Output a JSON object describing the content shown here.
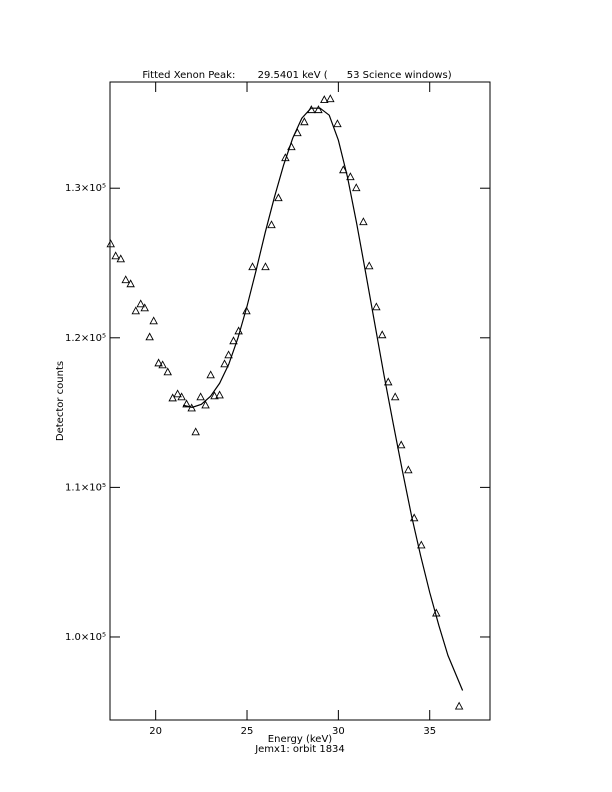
{
  "chart_data": {
    "type": "scatter",
    "title": "Fitted Xenon Peak:       29.5401 keV (      53 Science windows)",
    "xlabel": "Energy (keV)",
    "ylabel": "Detector counts",
    "footer": "Jemx1: orbit 1834",
    "xlim": [
      17.5,
      38.3
    ],
    "ylim": [
      94450,
      137100
    ],
    "xticks": [
      20,
      25,
      30,
      35
    ],
    "yticks": [
      {
        "value": 100000,
        "label": "1.0×10⁵"
      },
      {
        "value": 110000,
        "label": "1.1×10⁵"
      },
      {
        "value": 120000,
        "label": "1.2×10⁵"
      },
      {
        "value": 130000,
        "label": "1.3×10⁵"
      }
    ],
    "series": [
      {
        "name": "Data",
        "color": "#000000",
        "marker": "triangle",
        "x": [
          17.54,
          17.81,
          18.09,
          18.36,
          18.63,
          18.91,
          19.18,
          19.4,
          19.67,
          19.89,
          20.16,
          20.38,
          20.66,
          20.93,
          21.2,
          21.42,
          21.69,
          21.97,
          22.19,
          22.46,
          22.73,
          23.01,
          23.22,
          23.5,
          23.77,
          23.99,
          24.26,
          24.54,
          24.97,
          25.3,
          26.01,
          26.34,
          26.72,
          27.1,
          27.43,
          27.76,
          28.14,
          28.52,
          28.91,
          29.23,
          29.56,
          29.95,
          30.27,
          30.66,
          30.98,
          31.37,
          31.69,
          32.08,
          32.4,
          32.73,
          33.11,
          33.44,
          33.83,
          34.15,
          34.54,
          35.36,
          36.61
        ],
        "values": [
          126250,
          125450,
          125250,
          123850,
          123580,
          121770,
          122240,
          121970,
          120030,
          121100,
          118290,
          118160,
          117690,
          115950,
          116220,
          116020,
          115550,
          115280,
          113680,
          116020,
          115480,
          117490,
          116090,
          116150,
          118230,
          118830,
          119770,
          120430,
          121770,
          124720,
          124720,
          127530,
          129330,
          132010,
          132740,
          133680,
          134410,
          135220,
          135220,
          135890,
          135950,
          134280,
          131200,
          130740,
          130000,
          127730,
          124780,
          122040,
          120170,
          117020,
          116020,
          112810,
          111140,
          107930,
          106120,
          101570,
          95350
        ]
      },
      {
        "name": "Fit",
        "color": "#000000",
        "marker": "line",
        "x": [
          21.5,
          22,
          22.5,
          23,
          23.5,
          24,
          24.5,
          25,
          25.5,
          26,
          26.5,
          27,
          27.5,
          28,
          28.5,
          29,
          29.5,
          30,
          30.5,
          31,
          31.5,
          32,
          32.5,
          33,
          33.5,
          34,
          34.5,
          35,
          35.5,
          36,
          36.8
        ],
        "values": [
          115490,
          115350,
          115550,
          116090,
          116960,
          118230,
          119970,
          122110,
          124520,
          127060,
          129400,
          131540,
          133340,
          134680,
          135350,
          135350,
          134880,
          133210,
          130740,
          127660,
          124310,
          120900,
          117490,
          114280,
          111140,
          108130,
          105450,
          102980,
          100770,
          98760,
          96420
        ]
      }
    ]
  }
}
